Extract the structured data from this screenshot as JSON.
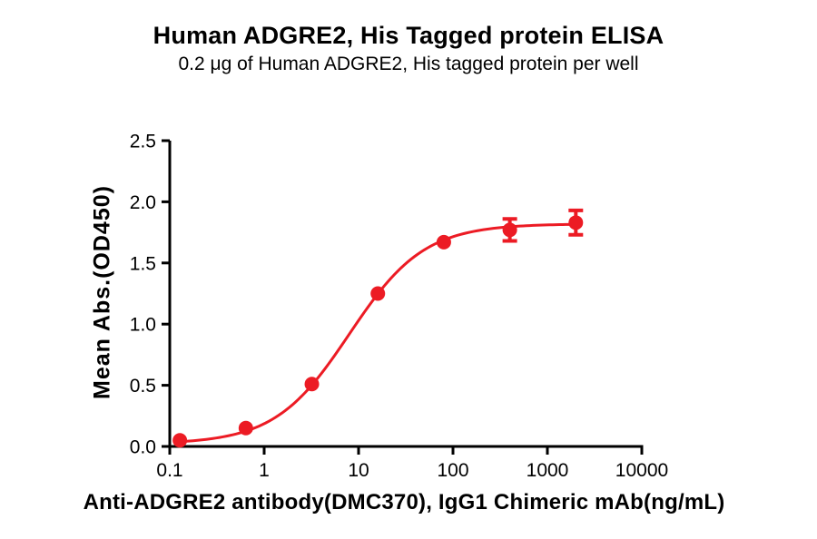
{
  "chart_data": {
    "type": "scatter",
    "subtype": "dose-response-curve",
    "title": "Human ADGRE2, His Tagged protein ELISA",
    "subtitle": "0.2 μg of Human ADGRE2, His tagged protein per well",
    "xlabel": "Anti-ADGRE2 antibody(DMC370), IgG1 Chimeric mAb(ng/mL)",
    "ylabel": "Mean Abs.(OD450)",
    "grid": false,
    "legend_position": "none",
    "background_color": "#ffffff",
    "axis_color": "#000000",
    "x_axis": {
      "scale": "log",
      "min": 0.1,
      "max": 10000,
      "ticks": [
        0.1,
        1,
        10,
        100,
        1000,
        10000
      ],
      "tick_labels": [
        "0.1",
        "1",
        "10",
        "100",
        "1000",
        "10000"
      ]
    },
    "y_axis": {
      "scale": "linear",
      "min": 0,
      "max": 2.5,
      "ticks": [
        0,
        0.5,
        1,
        1.5,
        2,
        2.5
      ],
      "tick_labels": [
        "0.0",
        "0.5",
        "1.0",
        "1.5",
        "2.0",
        "2.5"
      ]
    },
    "series": [
      {
        "name": "Anti-ADGRE2 antibody(DMC370), IgG1 Chimeric mAb",
        "color": "#EC1B24",
        "marker": "circle",
        "marker_radius": 8,
        "line_width": 3,
        "x": [
          0.128,
          0.64,
          3.2,
          16,
          80,
          400,
          2000
        ],
        "y": [
          0.05,
          0.15,
          0.51,
          1.25,
          1.67,
          1.77,
          1.83
        ],
        "y_err": [
          0,
          0,
          0,
          0,
          0,
          0.09,
          0.1
        ],
        "curve_fit": {
          "model": "4PL",
          "bottom": 0.02,
          "top": 1.82,
          "ec50": 8,
          "hill": 1.1
        }
      }
    ]
  }
}
